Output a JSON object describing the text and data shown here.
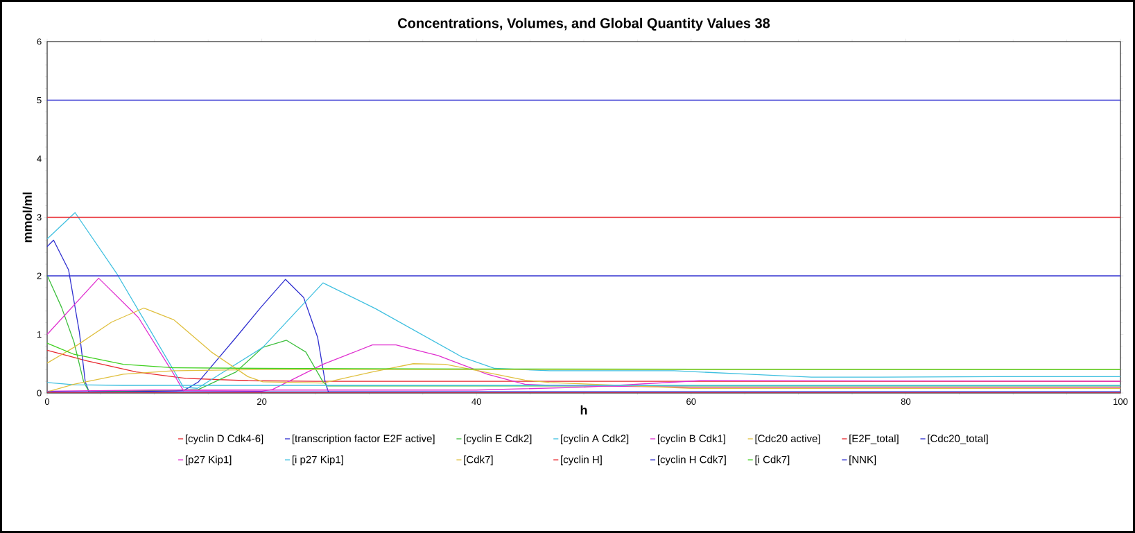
{
  "chart_data": {
    "type": "line",
    "title": "Concentrations, Volumes, and Global Quantity Values 38",
    "xlabel": "h",
    "ylabel": "mmol/ml",
    "xlim": [
      0,
      100
    ],
    "ylim": [
      0,
      6
    ],
    "xticks": [
      0,
      20,
      40,
      60,
      80,
      100
    ],
    "yticks": [
      0,
      1,
      2,
      3,
      4,
      5,
      6
    ],
    "grid": false,
    "legend": "bottom",
    "marker": "none",
    "line_style": "solid",
    "series": [
      {
        "name": "[cyclin D Cdk4-6]",
        "color": "#e8282e",
        "x": [
          0,
          3.7,
          8.3,
          12.9,
          18.7,
          25,
          40,
          100
        ],
        "values": [
          0.73,
          0.55,
          0.36,
          0.25,
          0.21,
          0.2,
          0.2,
          0.2
        ]
      },
      {
        "name": "[transcription factor E2F active]",
        "color": "#3030d0",
        "x": [
          0,
          0.6,
          2,
          3,
          3.55,
          3.9,
          12.7,
          14.1,
          17.6,
          19.9,
          22.2,
          23.9,
          25.2,
          25.9,
          26.2,
          100
        ],
        "values": [
          2.5,
          2.61,
          2.1,
          1.04,
          0.19,
          0.02,
          0.04,
          0.19,
          0.95,
          1.46,
          1.94,
          1.63,
          0.95,
          0.19,
          0.02,
          0.02
        ]
      },
      {
        "name": "[cyclin E Cdk2]",
        "color": "#40c040",
        "x": [
          0,
          1.35,
          2.5,
          3.4,
          3.9,
          14.1,
          17.6,
          20.1,
          22.3,
          24.1,
          25.7,
          26.1,
          100
        ],
        "values": [
          2.01,
          1.46,
          0.87,
          0.19,
          0.02,
          0.06,
          0.36,
          0.78,
          0.9,
          0.7,
          0.19,
          0.12,
          0.12
        ]
      },
      {
        "name": "[cyclin A Cdk2]",
        "color": "#40c0e0",
        "x": [
          0,
          2.6,
          6.45,
          9.7,
          12.7,
          14,
          20.1,
          25.7,
          30.6,
          38.7,
          41.7,
          46.8,
          58.4,
          65.3,
          71.2,
          76.6,
          88.9,
          100
        ],
        "values": [
          2.63,
          3.08,
          2.05,
          1.04,
          0.1,
          0.08,
          0.78,
          1.88,
          1.44,
          0.61,
          0.42,
          0.38,
          0.38,
          0.32,
          0.27,
          0.27,
          0.28,
          0.28
        ]
      },
      {
        "name": "[cyclin B Cdk1]",
        "color": "#e030d0",
        "x": [
          0,
          4.8,
          8.5,
          11.8,
          12.7,
          20,
          21,
          25.7,
          30.3,
          32.5,
          36.4,
          41,
          44.5,
          46.8,
          60,
          100
        ],
        "values": [
          1.0,
          1.96,
          1.29,
          0.32,
          0.04,
          0.03,
          0.06,
          0.49,
          0.82,
          0.82,
          0.64,
          0.32,
          0.15,
          0.13,
          0.1,
          0.1
        ]
      },
      {
        "name": "[Cdc20 active]",
        "color": "#e0c040",
        "x": [
          0,
          2.5,
          6,
          9,
          11.8,
          15.3,
          18.7,
          20.1,
          25.7,
          30.3,
          34.1,
          37.1,
          39.9,
          44.5,
          46.8,
          60,
          100
        ],
        "values": [
          0.51,
          0.78,
          1.21,
          1.45,
          1.25,
          0.7,
          0.28,
          0.19,
          0.17,
          0.36,
          0.5,
          0.49,
          0.39,
          0.22,
          0.18,
          0.08,
          0.08
        ]
      },
      {
        "name": "[E2F_total]",
        "color": "#e8282e",
        "x": [
          0,
          100
        ],
        "values": [
          3,
          3
        ]
      },
      {
        "name": "[Cdc20_total]",
        "color": "#3030d0",
        "x": [
          0,
          100
        ],
        "values": [
          5,
          5
        ]
      },
      {
        "name": "[p27 Kip1]",
        "color": "#e030d0",
        "x": [
          0,
          10,
          40,
          50,
          60.8,
          100
        ],
        "values": [
          0.03,
          0.05,
          0.05,
          0.1,
          0.21,
          0.2
        ]
      },
      {
        "name": "[i p27 Kip1]",
        "color": "#40c0e0",
        "x": [
          0,
          2.5,
          7,
          100
        ],
        "values": [
          0.18,
          0.14,
          0.13,
          0.13
        ]
      },
      {
        "name": "[Cdk7]",
        "color": "#e0c040",
        "x": [
          0,
          2.5,
          7.1,
          11.8,
          20,
          100
        ],
        "values": [
          0.02,
          0.15,
          0.32,
          0.38,
          0.4,
          0.4
        ]
      },
      {
        "name": "[cyclin H]",
        "color": "#e8282e",
        "x": [
          0,
          100
        ],
        "values": [
          0.01,
          0.01
        ]
      },
      {
        "name": "[cyclin H Cdk7]",
        "color": "#3030d0",
        "x": [
          0,
          100
        ],
        "values": [
          0.02,
          0.02
        ]
      },
      {
        "name": "[i Cdk7]",
        "color": "#40d020",
        "x": [
          0,
          2.5,
          7.1,
          11.8,
          20,
          40,
          100
        ],
        "values": [
          0.85,
          0.66,
          0.49,
          0.43,
          0.42,
          0.41,
          0.4
        ]
      },
      {
        "name": "[NNK]",
        "color": "#3030d0",
        "x": [
          0,
          100
        ],
        "values": [
          2,
          2
        ]
      }
    ]
  }
}
